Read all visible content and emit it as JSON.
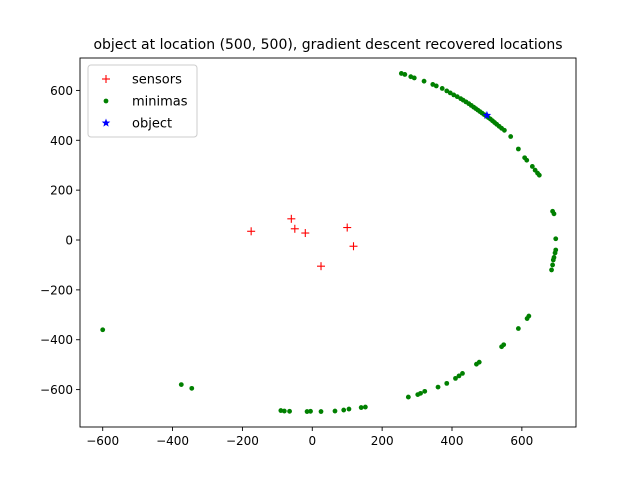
{
  "chart_data": {
    "type": "scatter",
    "title": "object at location (500, 500), gradient descent recovered locations",
    "xlabel": "",
    "ylabel": "",
    "xlim": [
      -665,
      755
    ],
    "ylim": [
      -750,
      730
    ],
    "xticks": [
      -600,
      -400,
      -200,
      0,
      200,
      400,
      600
    ],
    "yticks": [
      -600,
      -400,
      -200,
      0,
      200,
      400,
      600
    ],
    "tick_labels_x": [
      "−600",
      "−400",
      "−200",
      "0",
      "200",
      "400",
      "600"
    ],
    "tick_labels_y": [
      "−600",
      "−400",
      "−200",
      "0",
      "200",
      "400",
      "600"
    ],
    "grid": false,
    "legend_position": "upper-left",
    "series": [
      {
        "name": "sensors",
        "marker": "plus",
        "color": "#ff0000",
        "points": [
          [
            -175,
            35
          ],
          [
            -60,
            85
          ],
          [
            -50,
            45
          ],
          [
            -20,
            28
          ],
          [
            100,
            50
          ],
          [
            118,
            -25
          ],
          [
            25,
            -105
          ]
        ]
      },
      {
        "name": "minimas",
        "marker": "dot",
        "color": "#008000",
        "points": [
          [
            255,
            668
          ],
          [
            265,
            664
          ],
          [
            282,
            655
          ],
          [
            292,
            650
          ],
          [
            320,
            637
          ],
          [
            345,
            624
          ],
          [
            355,
            618
          ],
          [
            372,
            608
          ],
          [
            385,
            598
          ],
          [
            395,
            590
          ],
          [
            405,
            582
          ],
          [
            415,
            575
          ],
          [
            425,
            567
          ],
          [
            432,
            561
          ],
          [
            440,
            554
          ],
          [
            448,
            547
          ],
          [
            455,
            540
          ],
          [
            462,
            533
          ],
          [
            468,
            527
          ],
          [
            474,
            521
          ],
          [
            480,
            515
          ],
          [
            486,
            509
          ],
          [
            492,
            503
          ],
          [
            498,
            497
          ],
          [
            504,
            491
          ],
          [
            510,
            485
          ],
          [
            516,
            478
          ],
          [
            522,
            471
          ],
          [
            528,
            464
          ],
          [
            535,
            456
          ],
          [
            542,
            448
          ],
          [
            550,
            440
          ],
          [
            568,
            415
          ],
          [
            590,
            365
          ],
          [
            608,
            330
          ],
          [
            614,
            320
          ],
          [
            630,
            295
          ],
          [
            638,
            280
          ],
          [
            645,
            268
          ],
          [
            650,
            260
          ],
          [
            688,
            115
          ],
          [
            692,
            105
          ],
          [
            697,
            5
          ],
          [
            697,
            -40
          ],
          [
            695,
            -52
          ],
          [
            692,
            -70
          ],
          [
            690,
            -80
          ],
          [
            688,
            -100
          ],
          [
            685,
            -120
          ],
          [
            620,
            -305
          ],
          [
            615,
            -315
          ],
          [
            590,
            -355
          ],
          [
            548,
            -420
          ],
          [
            542,
            -428
          ],
          [
            478,
            -490
          ],
          [
            470,
            -498
          ],
          [
            430,
            -535
          ],
          [
            420,
            -545
          ],
          [
            410,
            -555
          ],
          [
            385,
            -575
          ],
          [
            360,
            -590
          ],
          [
            322,
            -607
          ],
          [
            310,
            -615
          ],
          [
            302,
            -620
          ],
          [
            275,
            -630
          ],
          [
            152,
            -670
          ],
          [
            140,
            -672
          ],
          [
            105,
            -678
          ],
          [
            90,
            -682
          ],
          [
            65,
            -686
          ],
          [
            25,
            -688
          ],
          [
            -5,
            -687
          ],
          [
            -15,
            -688
          ],
          [
            -65,
            -687
          ],
          [
            -80,
            -686
          ],
          [
            -90,
            -684
          ],
          [
            -375,
            -580
          ],
          [
            -345,
            -595
          ],
          [
            -600,
            -360
          ]
        ]
      },
      {
        "name": "object",
        "marker": "star",
        "color": "#0000ff",
        "points": [
          [
            500,
            500
          ]
        ]
      }
    ]
  }
}
